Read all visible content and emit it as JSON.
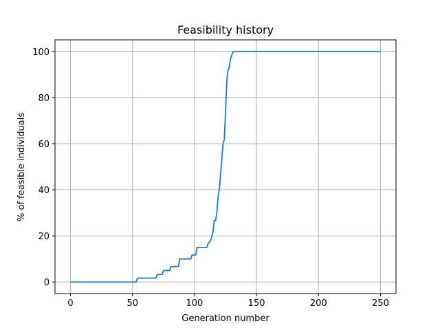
{
  "chart_data": {
    "type": "line",
    "title": "Feasibility history",
    "xlabel": "Generation number",
    "ylabel": "% of feasible individuals",
    "xlim": [
      -12.5,
      262.5
    ],
    "ylim": [
      -5,
      105
    ],
    "xticks": [
      0,
      50,
      100,
      150,
      200,
      250
    ],
    "yticks": [
      0,
      20,
      40,
      60,
      80,
      100
    ],
    "grid": true,
    "series": [
      {
        "color": "#1f77b4",
        "x": [
          0,
          53,
          54,
          69,
          70,
          74,
          75,
          80,
          81,
          87,
          88,
          97,
          98,
          101,
          102,
          110,
          111,
          113,
          114,
          115,
          116,
          117,
          118,
          119,
          120,
          121,
          122,
          123,
          124,
          125,
          126,
          127,
          128,
          129,
          130,
          131,
          132,
          133,
          134,
          250
        ],
        "y": [
          0,
          0,
          1.7,
          1.7,
          3.3,
          3.3,
          5,
          5,
          6.7,
          6.7,
          10,
          10,
          11.7,
          11.7,
          15,
          15,
          16.7,
          18,
          20,
          22,
          26.7,
          26.7,
          30,
          36.7,
          40,
          46.7,
          53,
          60,
          61.7,
          73,
          86.7,
          91.7,
          93,
          96.7,
          98.3,
          99.7,
          100,
          100,
          100,
          100
        ]
      }
    ]
  }
}
